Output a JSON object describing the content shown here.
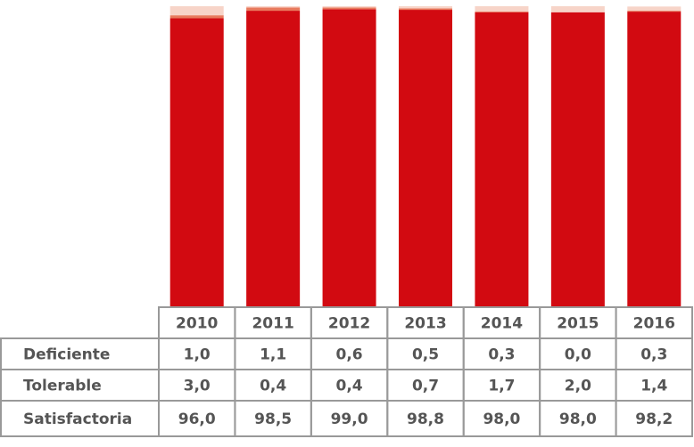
{
  "chart_data": {
    "type": "bar",
    "stacked": true,
    "categories": [
      "2010",
      "2011",
      "2012",
      "2013",
      "2014",
      "2015",
      "2016"
    ],
    "series": [
      {
        "name": "Deficiente",
        "color": "#e87a5d",
        "values": [
          1.0,
          1.1,
          0.6,
          0.5,
          0.3,
          0.0,
          0.3
        ],
        "value_labels": [
          "1,0",
          "1,1",
          "0,6",
          "0,5",
          "0,3",
          "0,0",
          "0,3"
        ]
      },
      {
        "name": "Tolerable",
        "color": "#f7d4c8",
        "values": [
          3.0,
          0.4,
          0.4,
          0.7,
          1.7,
          2.0,
          1.4
        ],
        "value_labels": [
          "3,0",
          "0,4",
          "0,4",
          "0,7",
          "1,7",
          "2,0",
          "1,4"
        ]
      },
      {
        "name": "Satisfactoria",
        "color": "#d20a11",
        "values": [
          96.0,
          98.5,
          99.0,
          98.8,
          98.0,
          98.0,
          98.2
        ],
        "value_labels": [
          "96,0",
          "98,5",
          "99,0",
          "98,8",
          "98,0",
          "98,0",
          "98,2"
        ]
      }
    ],
    "ylim": [
      0,
      100
    ]
  }
}
